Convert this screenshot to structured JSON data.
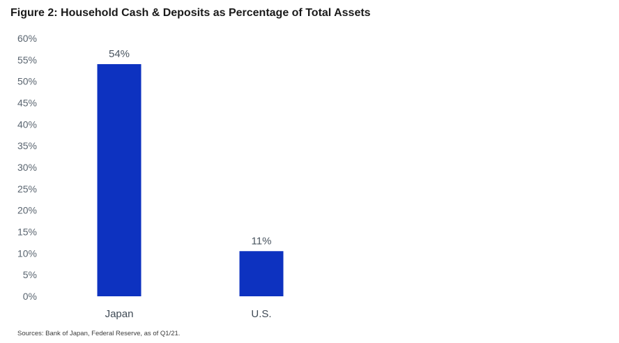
{
  "title": "Figure 2: Household Cash & Deposits as Percentage of Total Assets",
  "source": "Sources: Bank of Japan, Federal Reserve, as of Q1/21.",
  "colors": {
    "bar": "#0d32c0",
    "tick_text": "#5a6570"
  },
  "chart_data": {
    "type": "bar",
    "title": "Figure 2: Household Cash & Deposits as Percentage of Total Assets",
    "categories": [
      "Japan",
      "U.S."
    ],
    "values": [
      54,
      10.5
    ],
    "data_labels": [
      "54%",
      "11%"
    ],
    "ylim": [
      0,
      60
    ],
    "y_ticks": [
      0,
      5,
      10,
      15,
      20,
      25,
      30,
      35,
      40,
      45,
      50,
      55,
      60
    ],
    "y_tick_labels": [
      "0%",
      "5%",
      "10%",
      "15%",
      "20%",
      "25%",
      "30%",
      "35%",
      "40%",
      "45%",
      "50%",
      "55%",
      "60%"
    ],
    "xlabel": "",
    "ylabel": "",
    "grid": false,
    "legend": "none"
  }
}
